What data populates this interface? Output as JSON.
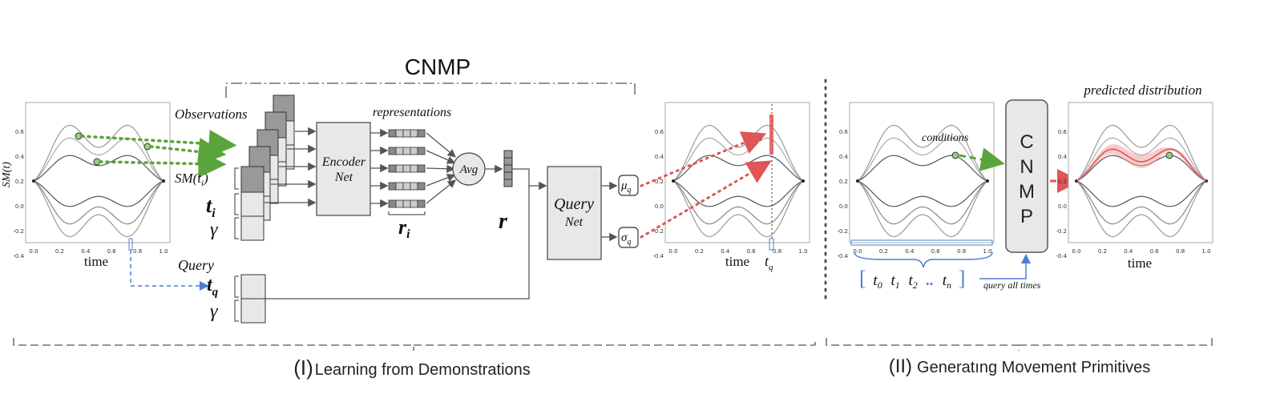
{
  "title": "CNMP",
  "panel1": {
    "ylabel": "SM(t)",
    "xlabel": "time",
    "xticks": [
      "0.0",
      "0.2",
      "0.4",
      "0.6",
      "0.8",
      "1.0"
    ],
    "yticks": [
      "0.6",
      "0.4",
      "0.2",
      "0.0",
      "-0.2",
      "-0.4"
    ]
  },
  "encoder": {
    "observations": "Observations",
    "sm_ti": "SM(t",
    "sm_ti_sub": "i",
    "sm_ti_close": ")",
    "t": "t",
    "t_sub": "i",
    "gamma": "γ",
    "net_line1": "Encoder",
    "net_line2": "Net",
    "representations": "representations",
    "r_i": "r",
    "r_i_sub": "i",
    "avg": "Avg",
    "r": "r"
  },
  "query": {
    "label": "Query",
    "t": "t",
    "t_sub": "q",
    "gamma": "γ",
    "net_line1": "Query",
    "net_line2": "Net",
    "mu": "μ",
    "mu_sub": "q",
    "sigma": "σ",
    "sigma_sub": "q"
  },
  "panel2": {
    "xlabel": "time",
    "tq": "t",
    "tq_sub": "q",
    "mu": "μ",
    "mu_sub": "q",
    "xticks": [
      "0.0",
      "0.2",
      "0.4",
      "0.6",
      "0.8",
      "1.0"
    ],
    "yticks": [
      "0.6",
      "0.4",
      "0.2",
      "0.0",
      "-0.2",
      "-0.4"
    ]
  },
  "panel3": {
    "conditions": "conditions",
    "xticks": [
      "0.0",
      "0.2",
      "0.4",
      "0.6",
      "0.8",
      "1.0"
    ],
    "yticks": [
      "0.6",
      "0.4",
      "0.2",
      "0.0",
      "-0.2",
      "-0.4"
    ],
    "times_open": "[",
    "times": [
      "t",
      "t",
      "t",
      "..",
      "t"
    ],
    "times_sub": [
      "0",
      "1",
      "2",
      "",
      "n"
    ],
    "times_close": "]",
    "query_all": "query all times"
  },
  "cnmp_box": [
    "C",
    "N",
    "M",
    "P"
  ],
  "panel4": {
    "title": "predicted distribution",
    "xlabel": "time",
    "xticks": [
      "0.0",
      "0.2",
      "0.4",
      "0.6",
      "0.8",
      "1.0"
    ],
    "yticks": [
      "0.6",
      "0.4",
      "0.2",
      "0.0",
      "-0.2",
      "-0.4"
    ]
  },
  "section1": {
    "num": "(I)",
    "label": "Learning from Demonstrations"
  },
  "section2": {
    "num": "(II)",
    "label": "Generatıng Movement Primitives"
  },
  "colors": {
    "green": "#5aa43c",
    "red": "#e05555",
    "blue": "#4a7fd4",
    "curve": "#777777",
    "box": "#e8e8e8"
  }
}
